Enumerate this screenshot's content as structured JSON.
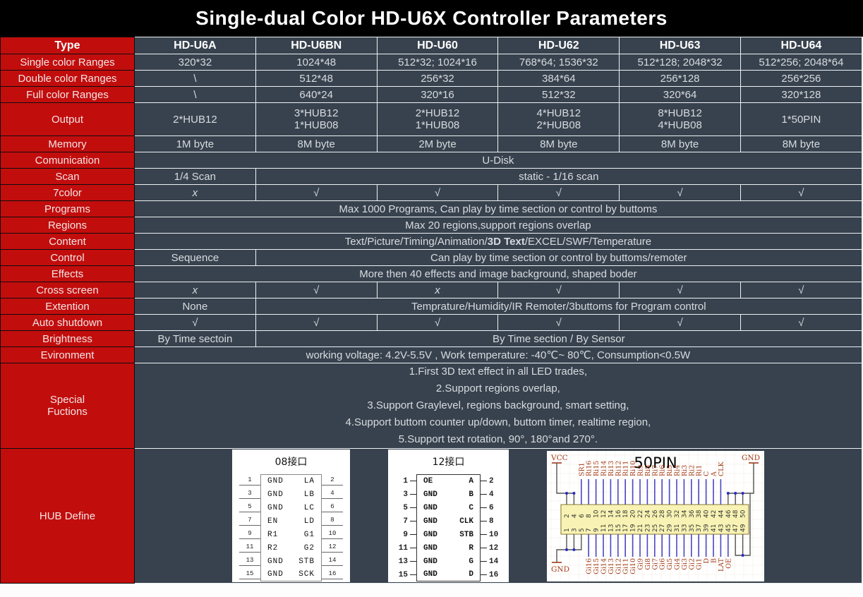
{
  "title": "Single-dual Color HD-U6X Controller Parameters",
  "colors": {
    "title_bg": "#000000",
    "accent_red": "#c20d0d",
    "cell_slate": "#38424e",
    "grid_line": "#edf1f4",
    "pin_label_brick": "#a23b17",
    "signal_line_blue": "#4a47c4",
    "bar_yellow": "#f8f3b4",
    "bar_border": "#8a7a2e"
  },
  "table": {
    "columns": [
      "Type",
      "HD-U6A",
      "HD-U6BN",
      "HD-U60",
      "HD-U62",
      "HD-U63",
      "HD-U64"
    ],
    "rows": [
      {
        "label": "Single color Ranges",
        "cells": [
          {
            "t": "320*32"
          },
          {
            "t": "1024*48"
          },
          {
            "t": "512*32;  1024*16"
          },
          {
            "t": "768*64;  1536*32"
          },
          {
            "t": "512*128;  2048*32"
          },
          {
            "t": "512*256;  2048*64"
          }
        ]
      },
      {
        "label": "Double color Ranges",
        "cells": [
          {
            "t": "\\"
          },
          {
            "t": "512*48"
          },
          {
            "t": "256*32"
          },
          {
            "t": "384*64"
          },
          {
            "t": "256*128"
          },
          {
            "t": "256*256"
          }
        ]
      },
      {
        "label": "Full color Ranges",
        "cells": [
          {
            "t": "\\"
          },
          {
            "t": "640*24"
          },
          {
            "t": "320*16"
          },
          {
            "t": "512*32"
          },
          {
            "t": "320*64"
          },
          {
            "t": "320*128"
          }
        ]
      },
      {
        "label": "Output",
        "h": "tall",
        "cells": [
          {
            "t": "2*HUB12"
          },
          {
            "t": "3*HUB12\n1*HUB08"
          },
          {
            "t": "2*HUB12\n1*HUB08"
          },
          {
            "t": "4*HUB12\n2*HUB08"
          },
          {
            "t": "8*HUB12\n4*HUB08"
          },
          {
            "t": "1*50PIN"
          }
        ]
      },
      {
        "label": "Memory",
        "cells": [
          {
            "t": "1M byte"
          },
          {
            "t": "8M byte"
          },
          {
            "t": "2M byte"
          },
          {
            "t": "8M byte"
          },
          {
            "t": "8M byte"
          },
          {
            "t": "8M byte"
          }
        ]
      },
      {
        "label": "Comunication",
        "cells": [
          {
            "t": "U-Disk",
            "s": 6
          }
        ]
      },
      {
        "label": "Scan",
        "cells": [
          {
            "t": "1/4 Scan"
          },
          {
            "t": "static - 1/16 scan",
            "s": 5
          }
        ]
      },
      {
        "label": "7color",
        "cells": [
          {
            "t": "x",
            "x": true
          },
          {
            "t": "√"
          },
          {
            "t": "√"
          },
          {
            "t": "√"
          },
          {
            "t": "√"
          },
          {
            "t": "√"
          }
        ]
      },
      {
        "label": "Programs",
        "cells": [
          {
            "t": "Max 1000 Programs,  Can play by time section or control by buttoms",
            "s": 6
          }
        ]
      },
      {
        "label": "Regions",
        "cells": [
          {
            "t": "Max 20 regions,support regions overlap",
            "s": 6
          }
        ]
      },
      {
        "label": "Content",
        "cells": [
          {
            "seg": [
              {
                "t": "Text/Picture/Timing/Animation/"
              },
              {
                "t": "3D Text",
                "b": true
              },
              {
                "t": "/EXCEL/SWF/Temperature"
              }
            ],
            "s": 6
          }
        ]
      },
      {
        "label": "Control",
        "cells": [
          {
            "t": "Sequence"
          },
          {
            "t": "Can play by time section or control by buttoms/remoter",
            "s": 5
          }
        ]
      },
      {
        "label": "Effects",
        "cells": [
          {
            "t": "More then 40 effects and image background, shaped boder",
            "s": 6
          }
        ]
      },
      {
        "label": "Cross screen",
        "cells": [
          {
            "t": "x",
            "x": true
          },
          {
            "t": "√"
          },
          {
            "t": "x",
            "x": true
          },
          {
            "t": "√"
          },
          {
            "t": "√"
          },
          {
            "t": "√"
          }
        ]
      },
      {
        "label": "Extention",
        "cells": [
          {
            "t": "None"
          },
          {
            "t": "Temprature/Humidity/IR Remoter/3buttoms for Program control",
            "s": 5
          }
        ]
      },
      {
        "label": "Auto shutdown",
        "cells": [
          {
            "t": "√"
          },
          {
            "t": "√"
          },
          {
            "t": "√"
          },
          {
            "t": "√"
          },
          {
            "t": "√"
          },
          {
            "t": "√"
          }
        ]
      },
      {
        "label": "Brightness",
        "cells": [
          {
            "t": "By Time sectoin"
          },
          {
            "t": "By Time section / By Sensor",
            "s": 5
          }
        ]
      },
      {
        "label": "Evironment",
        "cells": [
          {
            "t": "working voltage:  4.2V-5.5V ,  Work temperature:  -40℃~ 80℃,   Consumption<0.5W",
            "s": 6
          }
        ]
      },
      {
        "label": "Special\nFuctions",
        "h": "special",
        "cells": [
          {
            "lines": [
              "1.First 3D text effect in all LED trades,",
              "2.Support regions overlap,",
              "3.Support Graylevel,  regions background,  smart setting,",
              "4.Support buttom counter up/down,  buttom timer,  realtime region,",
              "5.Support text rotation,  90°, 180°and 270°."
            ],
            "s": 6
          }
        ]
      },
      {
        "label": "HUB Define",
        "h": "hub",
        "cells": [
          {
            "hub": true,
            "s": 6
          }
        ]
      }
    ]
  },
  "hub_diagrams": {
    "hub08": {
      "title": "08接口",
      "left_pins": [
        1,
        3,
        5,
        7,
        9,
        11,
        13,
        15
      ],
      "left_labels": [
        "GND",
        "GND",
        "GND",
        "EN",
        "R1",
        "R2",
        "GND",
        "GND"
      ],
      "right_labels": [
        "LA",
        "LB",
        "LC",
        "LD",
        "G1",
        "G2",
        "STB",
        "SCK"
      ],
      "right_pins": [
        2,
        4,
        6,
        8,
        10,
        12,
        14,
        16
      ]
    },
    "hub12": {
      "title": "12接口",
      "left_pins": [
        1,
        3,
        5,
        7,
        9,
        11,
        13,
        15
      ],
      "left_labels": [
        "OE",
        "GND",
        "GND",
        "GND",
        "GND",
        "GND",
        "GND",
        "GND"
      ],
      "right_labels": [
        "A",
        "B",
        "C",
        "CLK",
        "STB",
        "R",
        "G",
        "D"
      ],
      "right_pins": [
        2,
        4,
        6,
        8,
        10,
        12,
        14,
        16
      ]
    },
    "hub50": {
      "title": "50PIN",
      "vcc_label": "VCC",
      "gnd_label": "GND",
      "top_numbers": [
        2,
        4,
        6,
        8,
        10,
        12,
        14,
        16,
        18,
        20,
        22,
        24,
        26,
        28,
        30,
        32,
        34,
        36,
        38,
        40,
        42,
        44,
        46,
        48,
        50
      ],
      "bottom_numbers": [
        1,
        3,
        5,
        7,
        9,
        11,
        13,
        15,
        17,
        19,
        21,
        23,
        25,
        27,
        29,
        31,
        33,
        35,
        37,
        39,
        41,
        43,
        45,
        47,
        49
      ],
      "top_labels": [
        "SR1",
        "Ri16",
        "Ri15",
        "Ri14",
        "Ri13",
        "Ri12",
        "Ri11",
        "Ri10",
        "Ri9",
        "Ri8",
        "Ri7",
        "Ri6",
        "Ri5",
        "Ri4",
        "Ri3",
        "Ri2",
        "Ri1",
        "C",
        "A",
        "CLK"
      ],
      "bottom_labels": [
        "Gi16",
        "Gi15",
        "Gi14",
        "Gi13",
        "Gi12",
        "Gi11",
        "Gi10",
        "Gi9",
        "Gi8",
        "Gi7",
        "Gi6",
        "Gi5",
        "Gi4",
        "Gi3",
        "Gi2",
        "Gi1",
        "D",
        "B",
        "LAT",
        "OE"
      ]
    }
  }
}
